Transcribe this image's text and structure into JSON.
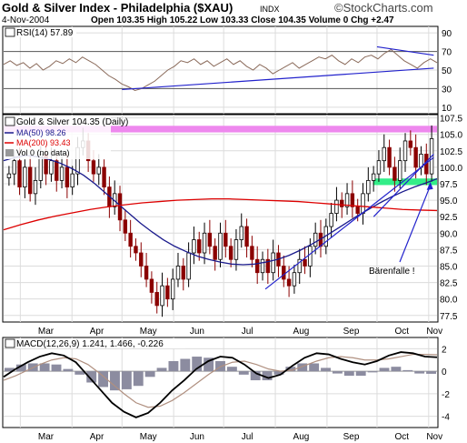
{
  "header": {
    "title": "Gold & Silver Index - Philadelphia ($XAU)",
    "exchange": "INDX",
    "brand": "©StockCharts.com",
    "date": "4-Nov-2004",
    "quote": "Open 103.35 High 105.22 Low 103.33 Close 104.35 Volume 0 Chg +2.47"
  },
  "colors": {
    "price_up": "#000000",
    "price_down": "#8b0000",
    "ma50": "#1a1a8c",
    "ma200": "#dd0000",
    "trendline": "#2222cc",
    "resistance_band": "#ee88ee",
    "support_band": "#33ee88",
    "rsi_line": "#8a6a5a",
    "macd_line": "#000000",
    "signal_line": "#b09080",
    "histogram": "#8c8ca0"
  },
  "months": [
    "Mar",
    "Apr",
    "May",
    "Jun",
    "Jul",
    "Aug",
    "Sep",
    "Oct",
    "Nov"
  ],
  "chart_data": [
    {
      "type": "line",
      "panel": "rsi",
      "label": "RSI(14) 57.89",
      "y_ticks": [
        10,
        30,
        50,
        70,
        90
      ],
      "ylim": [
        10,
        90
      ],
      "guide_levels": [
        30,
        70
      ],
      "series": [
        {
          "name": "RSI(14)",
          "values": [
            56,
            60,
            55,
            58,
            52,
            57,
            50,
            54,
            60,
            57,
            62,
            58,
            64,
            60,
            56,
            50,
            44,
            40,
            35,
            32,
            28,
            30,
            34,
            38,
            44,
            50,
            54,
            60,
            58,
            62,
            56,
            60,
            54,
            58,
            62,
            56,
            60,
            54,
            50,
            56,
            52,
            46,
            50,
            54,
            58,
            52,
            56,
            60,
            64,
            62,
            66,
            60,
            56,
            62,
            58,
            64,
            66,
            62,
            68,
            72,
            66,
            60,
            56,
            52,
            58,
            62,
            57.89
          ]
        }
      ],
      "trendlines": [
        {
          "from": [
            "2004-05-01",
            29
          ],
          "to": [
            "2004-11-04",
            52
          ]
        },
        {
          "from": [
            "2004-10-01",
            75
          ],
          "to": [
            "2004-11-04",
            66
          ]
        }
      ]
    },
    {
      "type": "candlestick",
      "panel": "price",
      "label": "Gold & Silver 104.35 (Daily)",
      "y_ticks": [
        77.5,
        80.0,
        82.5,
        85.0,
        87.5,
        90.0,
        92.5,
        95.0,
        97.5,
        100.0,
        102.5,
        105.0,
        107.5
      ],
      "ylim": [
        76.5,
        108
      ],
      "x_labels": [
        "Mar",
        "Apr",
        "May",
        "Jun",
        "Jul",
        "Aug",
        "Sep",
        "Oct",
        "Nov"
      ],
      "legend": [
        "MA(50) 98.26",
        "MA(200) 93.43",
        "Vol 0 (no data)"
      ],
      "series": [
        {
          "name": "Close",
          "values": [
            99,
            101,
            97,
            100,
            96,
            98,
            102,
            99,
            101,
            98,
            100,
            97,
            99,
            103,
            104,
            101,
            99,
            100,
            97,
            94,
            96,
            92,
            90,
            88,
            87,
            85,
            83,
            81,
            79,
            82,
            80,
            83,
            85,
            83,
            87,
            89,
            87,
            90,
            88,
            86,
            90,
            88,
            86,
            89,
            91,
            88,
            86,
            84,
            86,
            84,
            87,
            85,
            83,
            82,
            84,
            86,
            85,
            88,
            90,
            88,
            91,
            93,
            95,
            94,
            96,
            94,
            93,
            96,
            98,
            99,
            101,
            103,
            100,
            98,
            101,
            104,
            103,
            100,
            102,
            99,
            104.35
          ]
        },
        {
          "name": "MA(50)",
          "values": [
            101,
            101.5,
            101.8,
            101.6,
            101.2,
            100.6,
            99.8,
            98.8,
            97.5,
            96,
            94.5,
            93,
            91.5,
            90.2,
            89,
            88,
            87.2,
            86.5,
            86,
            85.6,
            85.3,
            85.2,
            85.3,
            85.6,
            86,
            86.6,
            87.4,
            88.3,
            89.3,
            90.4,
            91.5,
            92.6,
            93.6,
            94.6,
            95.5,
            96.3,
            97,
            97.6,
            98.26
          ]
        },
        {
          "name": "MA(200)",
          "values": [
            90.5,
            91.3,
            92,
            92.6,
            93.1,
            93.6,
            94,
            94.3,
            94.6,
            94.8,
            95,
            95.1,
            95.2,
            95.2,
            95.1,
            95,
            94.9,
            94.8,
            94.6,
            94.4,
            94.2,
            94,
            93.8,
            93.6,
            93.5,
            93.43
          ]
        }
      ],
      "annotations": [
        {
          "text": "Bärenfalle !"
        }
      ],
      "trendlines": [
        {
          "from": [
            "2004-07-26",
            81.5
          ],
          "to": [
            "2004-11-04",
            101.5
          ]
        },
        {
          "from": [
            "2004-09-29",
            92.5
          ],
          "to": [
            "2004-11-04",
            102
          ]
        }
      ],
      "bands": [
        {
          "name": "resistance",
          "low": 105.3,
          "high": 106.3
        },
        {
          "name": "support",
          "low": 97.3,
          "high": 98.3
        }
      ]
    },
    {
      "type": "line",
      "panel": "macd",
      "label": "MACD(12,26,9) 1.241, 1.466, -0.226",
      "y_ticks": [
        -4,
        -2,
        0,
        2
      ],
      "ylim": [
        -5,
        3
      ],
      "x_labels": [
        "Mar",
        "Apr",
        "May",
        "Jun",
        "Jul",
        "Aug",
        "Sep",
        "Oct",
        "Nov"
      ],
      "series": [
        {
          "name": "MACD",
          "values": [
            -0.5,
            0.2,
            0.8,
            1.3,
            1.6,
            1.4,
            0.8,
            -0.4,
            -1.6,
            -2.8,
            -3.6,
            -4.1,
            -3.7,
            -2.8,
            -1.7,
            -0.8,
            0.2,
            0.9,
            1.3,
            1.2,
            0.6,
            -0.2,
            -0.6,
            -0.3,
            0.5,
            1.2,
            1.6,
            1.5,
            1.1,
            0.8,
            0.6,
            0.9,
            1.4,
            1.7,
            1.6,
            1.3,
            1.241
          ]
        },
        {
          "name": "Signal",
          "values": [
            -0.8,
            -0.4,
            0.1,
            0.6,
            1.0,
            1.2,
            1.1,
            0.6,
            -0.2,
            -1.1,
            -2.0,
            -2.8,
            -3.2,
            -3.1,
            -2.6,
            -1.9,
            -1.1,
            -0.3,
            0.4,
            0.8,
            0.9,
            0.6,
            0.2,
            0.0,
            0.1,
            0.5,
            0.9,
            1.2,
            1.3,
            1.2,
            1.0,
            1.0,
            1.1,
            1.3,
            1.5,
            1.5,
            1.466
          ]
        },
        {
          "name": "Histogram",
          "values": [
            0.3,
            0.6,
            0.7,
            0.7,
            0.6,
            0.2,
            -0.3,
            -1.0,
            -1.4,
            -1.7,
            -1.6,
            -1.3,
            -0.5,
            0.3,
            0.9,
            1.1,
            1.3,
            1.2,
            0.9,
            0.4,
            -0.3,
            -0.8,
            -0.8,
            -0.3,
            0.4,
            0.7,
            0.7,
            0.3,
            -0.2,
            -0.4,
            -0.4,
            -0.1,
            0.3,
            0.4,
            0.1,
            -0.2,
            -0.226
          ]
        }
      ]
    }
  ]
}
